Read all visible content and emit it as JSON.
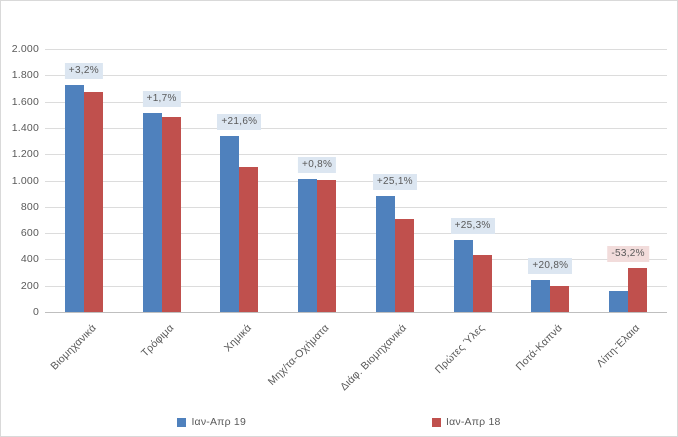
{
  "chart_data": {
    "type": "bar",
    "title": "",
    "xlabel": "",
    "ylabel": "",
    "categories": [
      "Βιομηχανικά",
      "Τρόφιμα",
      "Χημικά",
      "Μηχ/τα-Οχήματα",
      "Διάφ. Βιομηχανικά",
      "Πρώτες Ύλες",
      "Ποτά-Καπνά",
      "Λίπη-Έλαια"
    ],
    "series": [
      {
        "name": "Ιαν-Απρ 19",
        "color": "#4f81bd",
        "values": [
          1730,
          1510,
          1340,
          1013,
          885,
          545,
          240,
          157
        ]
      },
      {
        "name": "Ιαν-Απρ 18",
        "color": "#c0504d",
        "values": [
          1676,
          1485,
          1102,
          1005,
          707,
          435,
          199,
          335
        ]
      }
    ],
    "bar_labels": [
      "+3,2%",
      "+1,7%",
      "+21,6%",
      "+0,8%",
      "+25,1%",
      "+25,3%",
      "+20,8%",
      "-53,2%"
    ],
    "bar_label_tones": [
      "pos",
      "pos",
      "pos",
      "pos",
      "pos",
      "pos",
      "pos",
      "neg"
    ],
    "ylim": [
      0,
      2000
    ],
    "ytick_step": 200,
    "yticks": [
      "2.000",
      "1.800",
      "1.600",
      "1.400",
      "1.200",
      "1.000",
      "800",
      "600",
      "400",
      "200",
      "0"
    ],
    "grid": true,
    "legend_position": "bottom"
  },
  "colors": {
    "label_bg_positive": "#dce6f1",
    "label_bg_negative": "#f2dcdb",
    "gridline": "#dcdcdc",
    "axis_line": "#bfbfbf",
    "text": "#595959",
    "series1": "#4f81bd",
    "series2": "#c0504d"
  }
}
